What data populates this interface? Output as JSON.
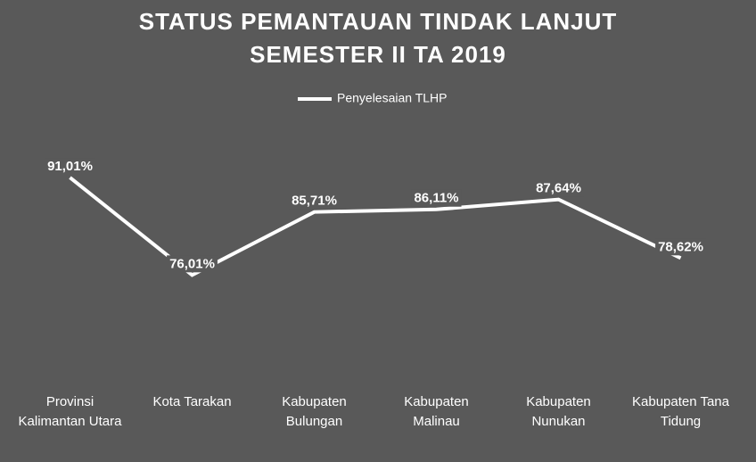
{
  "chart_data": {
    "type": "line",
    "title": [
      "STATUS PEMANTAUAN TINDAK LANJUT",
      "SEMESTER II TA 2019"
    ],
    "categories": [
      "Provinsi Kalimantan Utara",
      "Kota Tarakan",
      "Kabupaten Bulungan",
      "Kabupaten Malinau",
      "Kabupaten Nunukan",
      "Kabupaten Tana Tidung"
    ],
    "series": [
      {
        "name": "Penyelesaian TLHP",
        "color": "#ffffff",
        "values": [
          91.01,
          76.01,
          85.71,
          86.11,
          87.64,
          78.62
        ],
        "value_labels": [
          "91,01%",
          "76,01%",
          "85,71%",
          "86,11%",
          "87,64%",
          "78,62%"
        ]
      }
    ],
    "ylim": [
      60,
      95
    ],
    "legend": "top"
  }
}
